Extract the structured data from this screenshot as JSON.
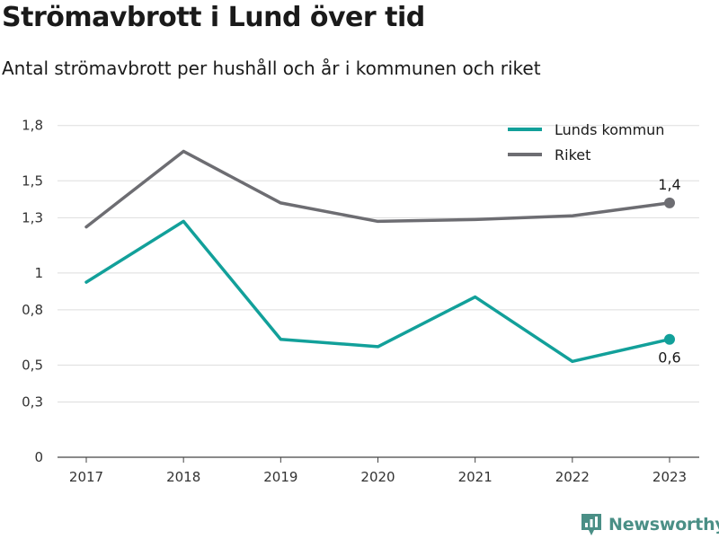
{
  "title": "Strömavbrott i Lund över tid",
  "subtitle": "Antal strömavbrott per hushåll och år i kommunen och riket",
  "brand": {
    "name": "Newsworthy",
    "color": "#4a8f86"
  },
  "chart_data": {
    "type": "line",
    "x": [
      "2017",
      "2018",
      "2019",
      "2020",
      "2021",
      "2022",
      "2023"
    ],
    "y_ticks": [
      0,
      0.3,
      0.5,
      0.8,
      1,
      1.3,
      1.5,
      1.8
    ],
    "y_tick_labels": [
      "0",
      "0,3",
      "0,5",
      "0,8",
      "1",
      "1,3",
      "1,5",
      "1,8"
    ],
    "ylim": [
      0,
      1.75
    ],
    "grid": true,
    "legend_position": "top-right",
    "series": [
      {
        "name": "Lunds kommun",
        "color": "#12a09a",
        "values": [
          0.95,
          1.28,
          0.64,
          0.6,
          0.87,
          0.52,
          0.64
        ],
        "end_label": "0,6",
        "end_label_position": "below"
      },
      {
        "name": "Riket",
        "color": "#6d6d72",
        "values": [
          1.25,
          1.66,
          1.38,
          1.28,
          1.29,
          1.31,
          1.38
        ],
        "end_label": "1,4",
        "end_label_position": "above"
      }
    ]
  }
}
